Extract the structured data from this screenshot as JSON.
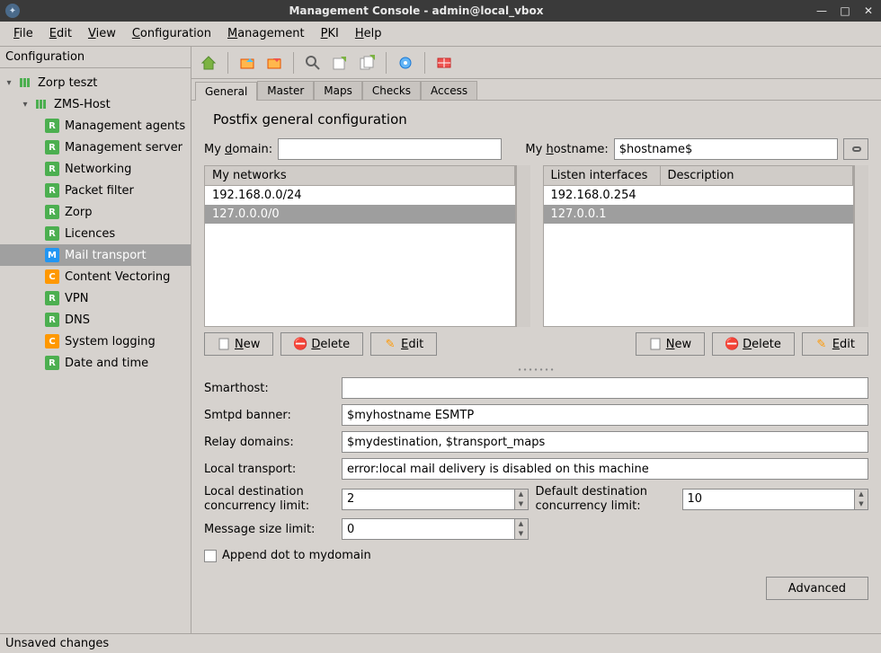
{
  "window": {
    "title": "Management Console - admin@local_vbox"
  },
  "menubar": {
    "items": [
      "File",
      "Edit",
      "View",
      "Configuration",
      "Management",
      "PKI",
      "Help"
    ],
    "accel": [
      0,
      0,
      0,
      0,
      0,
      0,
      0
    ]
  },
  "sidebar": {
    "title": "Configuration",
    "root": {
      "label": "Zorp teszt"
    },
    "host": {
      "label": "ZMS-Host"
    },
    "items": [
      {
        "label": "Management agents",
        "icon": "green",
        "glyph": "R",
        "sel": false
      },
      {
        "label": "Management server",
        "icon": "green",
        "glyph": "R",
        "sel": false
      },
      {
        "label": "Networking",
        "icon": "green",
        "glyph": "R",
        "sel": false
      },
      {
        "label": "Packet filter",
        "icon": "green",
        "glyph": "R",
        "sel": false
      },
      {
        "label": "Zorp",
        "icon": "green",
        "glyph": "R",
        "sel": false
      },
      {
        "label": "Licences",
        "icon": "green",
        "glyph": "R",
        "sel": false
      },
      {
        "label": "Mail transport",
        "icon": "blue",
        "glyph": "M",
        "sel": true
      },
      {
        "label": "Content Vectoring",
        "icon": "orange",
        "glyph": "C",
        "sel": false
      },
      {
        "label": "VPN",
        "icon": "green",
        "glyph": "R",
        "sel": false
      },
      {
        "label": "DNS",
        "icon": "green",
        "glyph": "R",
        "sel": false
      },
      {
        "label": "System logging",
        "icon": "orange",
        "glyph": "C",
        "sel": false
      },
      {
        "label": "Date and time",
        "icon": "green",
        "glyph": "R",
        "sel": false
      }
    ]
  },
  "toolbar": {
    "buttons": [
      "home",
      "open",
      "save",
      "search",
      "export",
      "import",
      "settings",
      "firewall"
    ]
  },
  "tabs": {
    "items": [
      "General",
      "Master",
      "Maps",
      "Checks",
      "Access"
    ],
    "active": 0
  },
  "general": {
    "title": "Postfix general configuration",
    "mydomain_label": "My domain:",
    "mydomain_value": "",
    "myhostname_label": "My hostname:",
    "myhostname_value": "$hostname$",
    "networks": {
      "header": "My networks",
      "rows": [
        "192.168.0.0/24",
        "127.0.0.0/0"
      ],
      "selected": 1
    },
    "interfaces": {
      "headers": [
        "Listen interfaces",
        "Description"
      ],
      "rows": [
        {
          "a": "192.168.0.254",
          "b": ""
        },
        {
          "a": "127.0.0.1",
          "b": ""
        }
      ],
      "selected": 1
    },
    "buttons": {
      "new": "New",
      "delete": "Delete",
      "edit": "Edit"
    },
    "smarthost_label": "Smarthost:",
    "smarthost_value": "",
    "banner_label": "Smtpd banner:",
    "banner_value": "$myhostname ESMTP",
    "relay_label": "Relay domains:",
    "relay_value": "$mydestination, $transport_maps",
    "local_transport_label": "Local transport:",
    "local_transport_value": "error:local mail delivery is disabled on this machine",
    "local_conc_label": "Local destination concurrency limit:",
    "local_conc_value": "2",
    "default_conc_label": "Default destination concurrency limit:",
    "default_conc_value": "10",
    "msgsize_label": "Message size limit:",
    "msgsize_value": "0",
    "append_dot_label": "Append dot to mydomain",
    "append_dot_checked": false,
    "advanced": "Advanced"
  },
  "statusbar": {
    "text": "Unsaved changes"
  },
  "colors": {
    "bg": "#d6d2ce",
    "border": "#a8a4a0",
    "sel": "#9e9e9e",
    "titlebar": "#3a3a3a",
    "green": "#4caf50",
    "orange": "#ff9800",
    "blue": "#2196f3",
    "red": "#d32f2f"
  }
}
